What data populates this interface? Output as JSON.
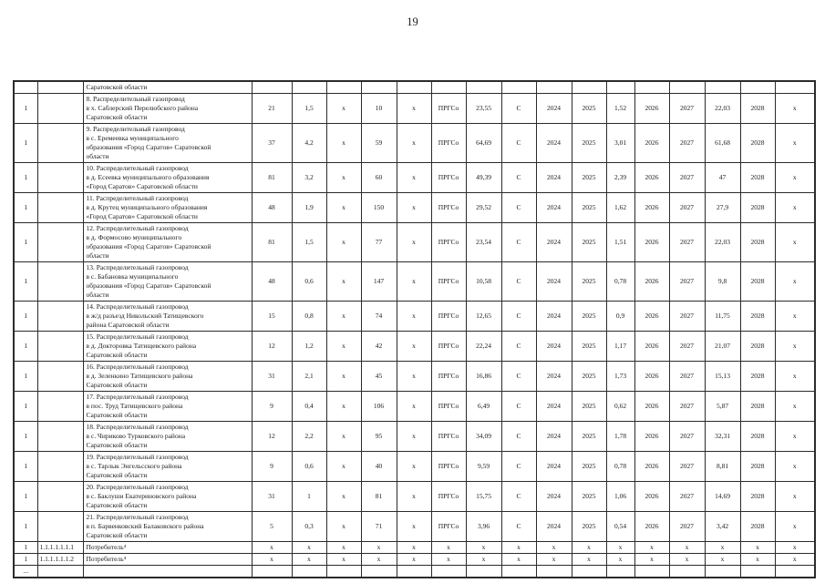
{
  "page": {
    "number": "19"
  },
  "table": {
    "rows": [
      {
        "cells": [
          "",
          "",
          "Саратовской области",
          "",
          "",
          "",
          "",
          "",
          "",
          "",
          "",
          "",
          "",
          "",
          "",
          "",
          "",
          "",
          ""
        ]
      },
      {
        "cells": [
          "1",
          "",
          "8. Распределительный газопровод\nв х. Саблерский Перелюбского района\nСаратовской области",
          "21",
          "1,5",
          "x",
          "10",
          "x",
          "ПРГСо",
          "23,55",
          "С",
          "2024",
          "2025",
          "1,52",
          "2026",
          "2027",
          "22,03",
          "2028",
          "x"
        ]
      },
      {
        "cells": [
          "1",
          "",
          "9. Распределительный газопровод\nв с. Еремеевка муниципального\nобразования «Город Саратов» Саратовской\nобласти",
          "37",
          "4,2",
          "x",
          "59",
          "x",
          "ПРГСо",
          "64,69",
          "С",
          "2024",
          "2025",
          "3,01",
          "2026",
          "2027",
          "61,68",
          "2028",
          "x"
        ]
      },
      {
        "cells": [
          "1",
          "",
          "10. Распределительный газопровод\nв д. Есеевка муниципального образования\n«Город Саратов» Саратовской области",
          "81",
          "3,2",
          "x",
          "60",
          "x",
          "ПРГСо",
          "49,39",
          "С",
          "2024",
          "2025",
          "2,39",
          "2026",
          "2027",
          "47",
          "2028",
          "x"
        ]
      },
      {
        "cells": [
          "1",
          "",
          "11. Распределительный газопровод\nв д. Крутец муниципального образования\n«Город Саратов» Саратовской области",
          "48",
          "1,9",
          "x",
          "150",
          "x",
          "ПРГСо",
          "29,52",
          "С",
          "2024",
          "2025",
          "1,62",
          "2026",
          "2027",
          "27,9",
          "2028",
          "x"
        ]
      },
      {
        "cells": [
          "1",
          "",
          "12. Распределительный газопровод\nв д. Формосово муниципального\nобразования «Город Саратов» Саратовской\nобласти",
          "81",
          "1,5",
          "x",
          "77",
          "x",
          "ПРГСо",
          "23,54",
          "С",
          "2024",
          "2025",
          "1,51",
          "2026",
          "2027",
          "22,03",
          "2028",
          "x"
        ]
      },
      {
        "cells": [
          "1",
          "",
          "13. Распределительный газопровод\nв с. Бабановка муниципального\nобразования «Город Саратов» Саратовской\nобласти",
          "48",
          "0,6",
          "x",
          "147",
          "x",
          "ПРГСо",
          "10,58",
          "С",
          "2024",
          "2025",
          "0,78",
          "2026",
          "2027",
          "9,8",
          "2028",
          "x"
        ]
      },
      {
        "cells": [
          "1",
          "",
          "14. Распределительный газопровод\nв ж/д разъезд Никольский Татищевского\nрайона Саратовской области",
          "15",
          "0,8",
          "x",
          "74",
          "x",
          "ПРГСо",
          "12,65",
          "С",
          "2024",
          "2025",
          "0,9",
          "2026",
          "2027",
          "11,75",
          "2028",
          "x"
        ]
      },
      {
        "cells": [
          "1",
          "",
          "15. Распределительный газопровод\nв д. Докторовка Татищевского района\nСаратовской области",
          "12",
          "1,2",
          "x",
          "42",
          "x",
          "ПРГСо",
          "22,24",
          "С",
          "2024",
          "2025",
          "1,17",
          "2026",
          "2027",
          "21,07",
          "2028",
          "x"
        ]
      },
      {
        "cells": [
          "1",
          "",
          "16. Распределительный газопровод\nв д. Зеленкино Татищевского района\nСаратовской области",
          "31",
          "2,1",
          "x",
          "45",
          "x",
          "ПРГСо",
          "16,86",
          "С",
          "2024",
          "2025",
          "1,73",
          "2026",
          "2027",
          "15,13",
          "2028",
          "x"
        ]
      },
      {
        "cells": [
          "1",
          "",
          "17. Распределительный газопровод\nв пос. Труд Татищевского района\nСаратовской области",
          "9",
          "0,4",
          "x",
          "106",
          "x",
          "ПРГСо",
          "6,49",
          "С",
          "2024",
          "2025",
          "0,62",
          "2026",
          "2027",
          "5,87",
          "2028",
          "x"
        ]
      },
      {
        "cells": [
          "1",
          "",
          "18. Распределительный газопровод\nв с. Чириково Турковского района\nСаратовской области",
          "12",
          "2,2",
          "x",
          "95",
          "x",
          "ПРГСо",
          "34,09",
          "С",
          "2024",
          "2025",
          "1,78",
          "2026",
          "2027",
          "32,31",
          "2028",
          "x"
        ]
      },
      {
        "cells": [
          "1",
          "",
          "19. Распределительный газопровод\nв с. Тарлык Энгельсского района\nСаратовской области",
          "9",
          "0,6",
          "x",
          "40",
          "x",
          "ПРГСо",
          "9,59",
          "С",
          "2024",
          "2025",
          "0,78",
          "2026",
          "2027",
          "8,81",
          "2028",
          "x"
        ]
      },
      {
        "cells": [
          "1",
          "",
          "20. Распределительный газопровод\nв с. Баклуши Екатериновского района\nСаратовской области",
          "31",
          "1",
          "x",
          "81",
          "x",
          "ПРГСо",
          "15,75",
          "С",
          "2024",
          "2025",
          "1,06",
          "2026",
          "2027",
          "14,69",
          "2028",
          "x"
        ]
      },
      {
        "cells": [
          "1",
          "",
          "21. Распределительный газопровод\nв п. Барвенковский Балаковского района\nСаратовской области",
          "5",
          "0,3",
          "x",
          "71",
          "x",
          "ПРГСо",
          "3,96",
          "С",
          "2024",
          "2025",
          "0,54",
          "2026",
          "2027",
          "3,42",
          "2028",
          "x"
        ]
      },
      {
        "cells": [
          "1",
          "1.1.1.1.1.1.1",
          "Потребитель⁴",
          "x",
          "x",
          "x",
          "x",
          "x",
          "x",
          "x",
          "x",
          "x",
          "x",
          "x",
          "x",
          "x",
          "x",
          "x",
          "x"
        ]
      },
      {
        "cells": [
          "1",
          "1.1.1.1.1.1.2",
          "Потребитель⁴",
          "x",
          "x",
          "x",
          "x",
          "x",
          "x",
          "x",
          "x",
          "x",
          "x",
          "x",
          "x",
          "x",
          "x",
          "x",
          "x"
        ]
      },
      {
        "cells": [
          "...",
          "",
          "",
          "",
          "",
          "",
          "",
          "",
          "",
          "",
          "",
          "",
          "",
          "",
          "",
          "",
          "",
          "",
          ""
        ]
      }
    ]
  }
}
